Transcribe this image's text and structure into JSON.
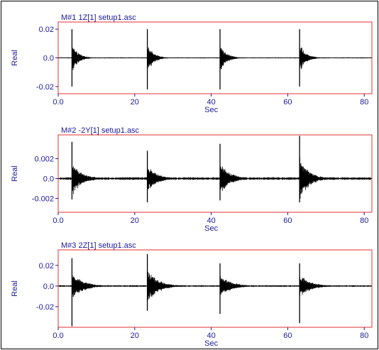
{
  "style": {
    "label_color": "#1a1a9a",
    "frame_color": "#e03030",
    "trace_color": "#000000"
  },
  "chart_data": [
    {
      "type": "line",
      "title": "M#1 1Z[1] setup1.asc",
      "xlabel": "Sec",
      "ylabel": "Real",
      "xlim": [
        0,
        82
      ],
      "ylim": [
        -0.025,
        0.025
      ],
      "xticks": [
        0,
        20,
        40,
        60,
        80
      ],
      "xtick_labels": [
        "0.0",
        "20",
        "40",
        "60",
        "80"
      ],
      "yticks": [
        0.02,
        0.0,
        -0.02
      ],
      "ytick_labels": [
        "0.02",
        "0.0",
        "-0.02"
      ],
      "impulses": [
        {
          "t": 3.6,
          "pos": 0.02,
          "neg": -0.02
        },
        {
          "t": 23.3,
          "pos": 0.02,
          "neg": -0.022
        },
        {
          "t": 42.3,
          "pos": 0.02,
          "neg": -0.022
        },
        {
          "t": 63.1,
          "pos": 0.02,
          "neg": -0.02
        }
      ],
      "decay_sec": 1.6,
      "noise_level": 0.00025
    },
    {
      "type": "line",
      "title": "M#2 -2Y[1] setup1.asc",
      "xlabel": "Sec",
      "ylabel": "Real",
      "xlim": [
        0,
        82
      ],
      "ylim": [
        -0.0034,
        0.0044
      ],
      "xticks": [
        0,
        20,
        40,
        60,
        80
      ],
      "xtick_labels": [
        "0.0",
        "20",
        "40",
        "60",
        "80"
      ],
      "yticks": [
        0.002,
        0.0,
        -0.002
      ],
      "ytick_labels": [
        "0.002",
        "0.0",
        "-0.002"
      ],
      "impulses": [
        {
          "t": 3.6,
          "pos": 0.0037,
          "neg": -0.0021
        },
        {
          "t": 23.3,
          "pos": 0.0028,
          "neg": -0.0024
        },
        {
          "t": 42.3,
          "pos": 0.0035,
          "neg": -0.0022
        },
        {
          "t": 63.1,
          "pos": 0.0043,
          "neg": -0.0024
        }
      ],
      "decay_sec": 2.4,
      "noise_level": 0.0001
    },
    {
      "type": "line",
      "title": "M#3 2Z[1] setup1.asc",
      "xlabel": "Sec",
      "ylabel": "Real",
      "xlim": [
        0,
        82
      ],
      "ylim": [
        -0.04,
        0.035
      ],
      "xticks": [
        0,
        20,
        40,
        60,
        80
      ],
      "xtick_labels": [
        "0.0",
        "20",
        "40",
        "60",
        "80"
      ],
      "yticks": [
        0.02,
        0.0,
        -0.02
      ],
      "ytick_labels": [
        "0.02",
        "0.0",
        "-0.02"
      ],
      "impulses": [
        {
          "t": 3.6,
          "pos": 0.027,
          "neg": -0.039
        },
        {
          "t": 23.3,
          "pos": 0.031,
          "neg": -0.024
        },
        {
          "t": 42.3,
          "pos": 0.022,
          "neg": -0.027
        },
        {
          "t": 63.1,
          "pos": 0.022,
          "neg": -0.036
        }
      ],
      "decay_sec": 2.8,
      "noise_level": 0.0006
    }
  ]
}
